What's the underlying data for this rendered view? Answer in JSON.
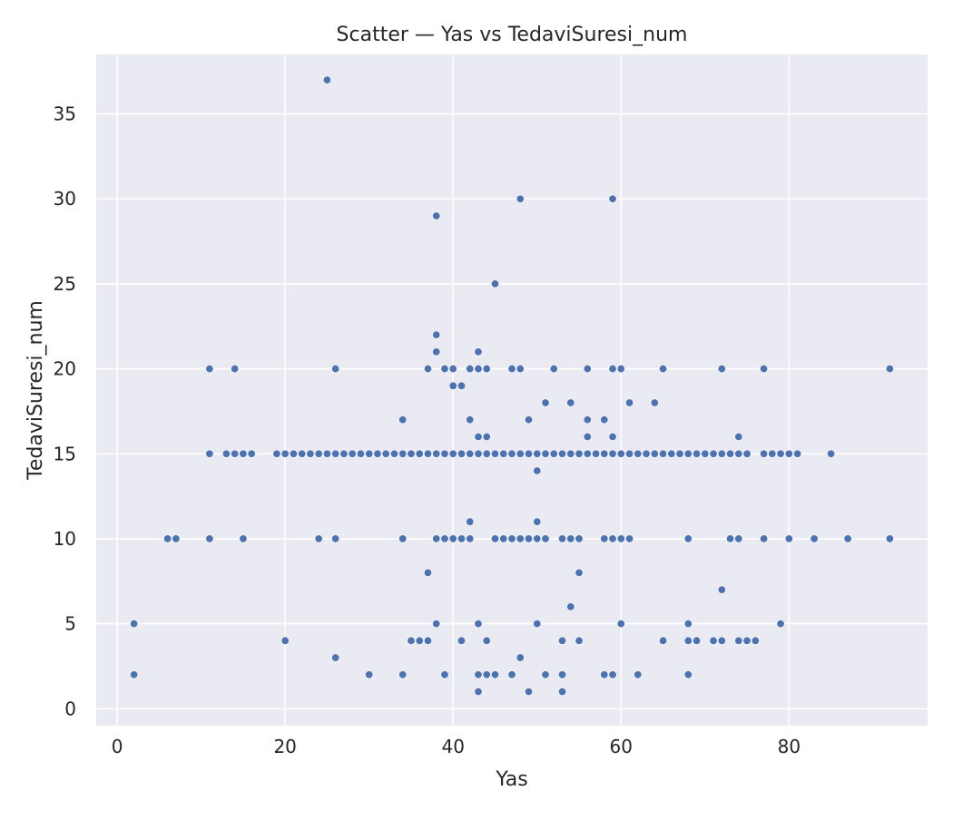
{
  "chart_data": {
    "type": "scatter",
    "title": "Scatter — Yas vs TedaviSuresi_num",
    "xlabel": "Yas",
    "ylabel": "TedaviSuresi_num",
    "xlim": [
      -2.5,
      96.5
    ],
    "ylim": [
      -1.0,
      38.5
    ],
    "xticks": [
      0,
      20,
      40,
      60,
      80
    ],
    "yticks": [
      0,
      5,
      10,
      15,
      20,
      25,
      30,
      35
    ],
    "grid": true,
    "legend": "none",
    "colors": {
      "background": "#eaeaf2",
      "grid": "#ffffff",
      "marker": "#4c72b0"
    },
    "series": [
      {
        "points": [
          [
            2,
            5
          ],
          [
            2,
            2
          ],
          [
            6,
            10
          ],
          [
            7,
            10
          ],
          [
            11,
            20
          ],
          [
            11,
            15
          ],
          [
            11,
            10
          ],
          [
            13,
            15
          ],
          [
            14,
            20
          ],
          [
            14,
            15
          ],
          [
            15,
            15
          ],
          [
            15,
            10
          ],
          [
            16,
            15
          ],
          [
            19,
            15
          ],
          [
            20,
            15
          ],
          [
            20,
            4
          ],
          [
            21,
            15
          ],
          [
            22,
            15
          ],
          [
            23,
            15
          ],
          [
            24,
            15
          ],
          [
            24,
            10
          ],
          [
            25,
            37
          ],
          [
            25,
            15
          ],
          [
            26,
            20
          ],
          [
            26,
            15
          ],
          [
            26,
            10
          ],
          [
            26,
            3
          ],
          [
            27,
            15
          ],
          [
            28,
            15
          ],
          [
            29,
            15
          ],
          [
            30,
            15
          ],
          [
            30,
            2
          ],
          [
            31,
            15
          ],
          [
            32,
            15
          ],
          [
            33,
            15
          ],
          [
            34,
            17
          ],
          [
            34,
            15
          ],
          [
            34,
            10
          ],
          [
            34,
            2
          ],
          [
            35,
            15
          ],
          [
            35,
            4
          ],
          [
            36,
            15
          ],
          [
            36,
            4
          ],
          [
            37,
            20
          ],
          [
            37,
            15
          ],
          [
            37,
            8
          ],
          [
            37,
            4
          ],
          [
            38,
            29
          ],
          [
            38,
            22
          ],
          [
            38,
            21
          ],
          [
            38,
            15
          ],
          [
            38,
            10
          ],
          [
            38,
            5
          ],
          [
            39,
            20
          ],
          [
            39,
            15
          ],
          [
            39,
            10
          ],
          [
            39,
            2
          ],
          [
            40,
            20
          ],
          [
            40,
            19
          ],
          [
            40,
            15
          ],
          [
            40,
            10
          ],
          [
            41,
            19
          ],
          [
            41,
            15
          ],
          [
            41,
            10
          ],
          [
            41,
            4
          ],
          [
            42,
            20
          ],
          [
            42,
            17
          ],
          [
            42,
            15
          ],
          [
            42,
            11
          ],
          [
            42,
            10
          ],
          [
            43,
            21
          ],
          [
            43,
            20
          ],
          [
            43,
            16
          ],
          [
            43,
            15
          ],
          [
            43,
            5
          ],
          [
            43,
            2
          ],
          [
            43,
            1
          ],
          [
            44,
            20
          ],
          [
            44,
            16
          ],
          [
            44,
            15
          ],
          [
            44,
            4
          ],
          [
            44,
            2
          ],
          [
            45,
            25
          ],
          [
            45,
            15
          ],
          [
            45,
            10
          ],
          [
            45,
            2
          ],
          [
            46,
            15
          ],
          [
            46,
            10
          ],
          [
            47,
            20
          ],
          [
            47,
            15
          ],
          [
            47,
            10
          ],
          [
            47,
            2
          ],
          [
            48,
            30
          ],
          [
            48,
            20
          ],
          [
            48,
            15
          ],
          [
            48,
            10
          ],
          [
            48,
            3
          ],
          [
            49,
            17
          ],
          [
            49,
            15
          ],
          [
            49,
            10
          ],
          [
            49,
            1
          ],
          [
            50,
            15
          ],
          [
            50,
            14
          ],
          [
            50,
            11
          ],
          [
            50,
            10
          ],
          [
            50,
            5
          ],
          [
            51,
            18
          ],
          [
            51,
            15
          ],
          [
            51,
            10
          ],
          [
            51,
            2
          ],
          [
            52,
            20
          ],
          [
            52,
            15
          ],
          [
            53,
            15
          ],
          [
            53,
            10
          ],
          [
            53,
            4
          ],
          [
            53,
            2
          ],
          [
            53,
            1
          ],
          [
            54,
            18
          ],
          [
            54,
            15
          ],
          [
            54,
            10
          ],
          [
            54,
            6
          ],
          [
            55,
            15
          ],
          [
            55,
            10
          ],
          [
            55,
            8
          ],
          [
            55,
            4
          ],
          [
            56,
            20
          ],
          [
            56,
            17
          ],
          [
            56,
            16
          ],
          [
            56,
            15
          ],
          [
            57,
            15
          ],
          [
            58,
            17
          ],
          [
            58,
            15
          ],
          [
            58,
            10
          ],
          [
            58,
            2
          ],
          [
            59,
            30
          ],
          [
            59,
            20
          ],
          [
            59,
            16
          ],
          [
            59,
            15
          ],
          [
            59,
            10
          ],
          [
            59,
            2
          ],
          [
            60,
            20
          ],
          [
            60,
            15
          ],
          [
            60,
            10
          ],
          [
            60,
            5
          ],
          [
            61,
            18
          ],
          [
            61,
            15
          ],
          [
            61,
            10
          ],
          [
            62,
            15
          ],
          [
            62,
            2
          ],
          [
            63,
            15
          ],
          [
            64,
            18
          ],
          [
            64,
            15
          ],
          [
            65,
            20
          ],
          [
            65,
            15
          ],
          [
            65,
            4
          ],
          [
            66,
            15
          ],
          [
            67,
            15
          ],
          [
            68,
            15
          ],
          [
            68,
            10
          ],
          [
            68,
            5
          ],
          [
            68,
            4
          ],
          [
            68,
            2
          ],
          [
            69,
            15
          ],
          [
            69,
            4
          ],
          [
            70,
            15
          ],
          [
            71,
            15
          ],
          [
            71,
            4
          ],
          [
            72,
            20
          ],
          [
            72,
            15
          ],
          [
            72,
            7
          ],
          [
            72,
            4
          ],
          [
            73,
            15
          ],
          [
            73,
            10
          ],
          [
            74,
            16
          ],
          [
            74,
            15
          ],
          [
            74,
            10
          ],
          [
            74,
            4
          ],
          [
            75,
            15
          ],
          [
            75,
            4
          ],
          [
            76,
            4
          ],
          [
            77,
            20
          ],
          [
            77,
            15
          ],
          [
            77,
            10
          ],
          [
            78,
            15
          ],
          [
            79,
            15
          ],
          [
            79,
            5
          ],
          [
            80,
            15
          ],
          [
            80,
            10
          ],
          [
            81,
            15
          ],
          [
            83,
            10
          ],
          [
            85,
            15
          ],
          [
            87,
            10
          ],
          [
            92,
            20
          ],
          [
            92,
            10
          ]
        ]
      }
    ]
  }
}
